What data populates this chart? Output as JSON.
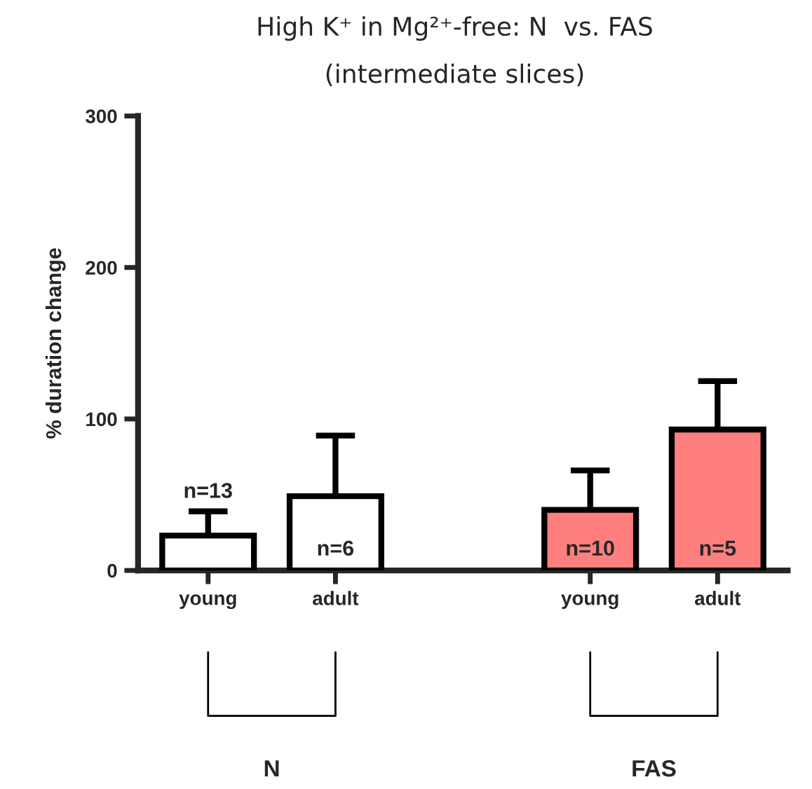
{
  "chart_data": {
    "type": "bar",
    "title": "High K⁺ in Mg²⁺-free: N  vs. FAS",
    "subtitle": "(intermediate slices)",
    "ylabel": "% duration change",
    "categories": [
      "young",
      "adult",
      null,
      "young",
      "adult"
    ],
    "values": [
      23,
      49,
      null,
      40,
      93
    ],
    "errors": [
      16,
      40,
      null,
      26,
      32
    ],
    "colors": [
      "#ffffff",
      "#ffffff",
      "#ffffff",
      "#ff7f7f",
      "#ff7f7f"
    ],
    "annotations": [
      "n=13",
      "n=6",
      "n=10",
      "n=5",
      "N",
      "FAS"
    ],
    "ylim": [
      0,
      300
    ],
    "yticks": [
      0,
      100,
      200,
      300
    ],
    "grid": false
  }
}
